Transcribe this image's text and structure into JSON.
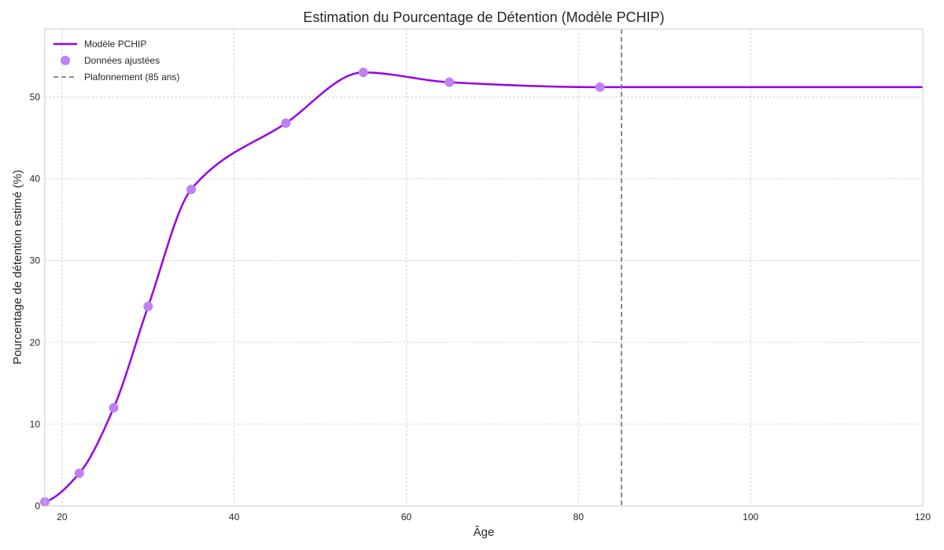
{
  "chart_data": {
    "type": "line",
    "title": "Estimation du Pourcentage de Détention (Modèle PCHIP)",
    "xlabel": "Âge",
    "ylabel": "Pourcentage de détention estimé (%)",
    "xlim": [
      18,
      120
    ],
    "ylim": [
      0,
      58.3
    ],
    "xticks": [
      20,
      40,
      60,
      80,
      100,
      120
    ],
    "yticks": [
      0,
      10,
      20,
      30,
      40,
      50
    ],
    "grid": true,
    "legend_position": "top-left",
    "series": [
      {
        "name": "Modèle PCHIP",
        "kind": "line",
        "color": "#9400ea",
        "x": [
          18,
          22,
          26,
          30,
          35,
          46,
          55,
          65,
          82.5,
          120
        ],
        "y": [
          0.5,
          4.0,
          12.0,
          24.4,
          38.7,
          46.8,
          53.0,
          51.8,
          51.2,
          51.2
        ]
      },
      {
        "name": "Données ajustées",
        "kind": "scatter",
        "color": "#bf80f5",
        "x": [
          18,
          22,
          26,
          30,
          35,
          46,
          55,
          65,
          82.5
        ],
        "y": [
          0.5,
          4.0,
          12.0,
          24.4,
          38.7,
          46.8,
          53.0,
          51.8,
          51.2
        ]
      },
      {
        "name": "Plafonnement (85 ans)",
        "kind": "vline",
        "color": "#7f7f7f",
        "x": 85
      }
    ]
  }
}
